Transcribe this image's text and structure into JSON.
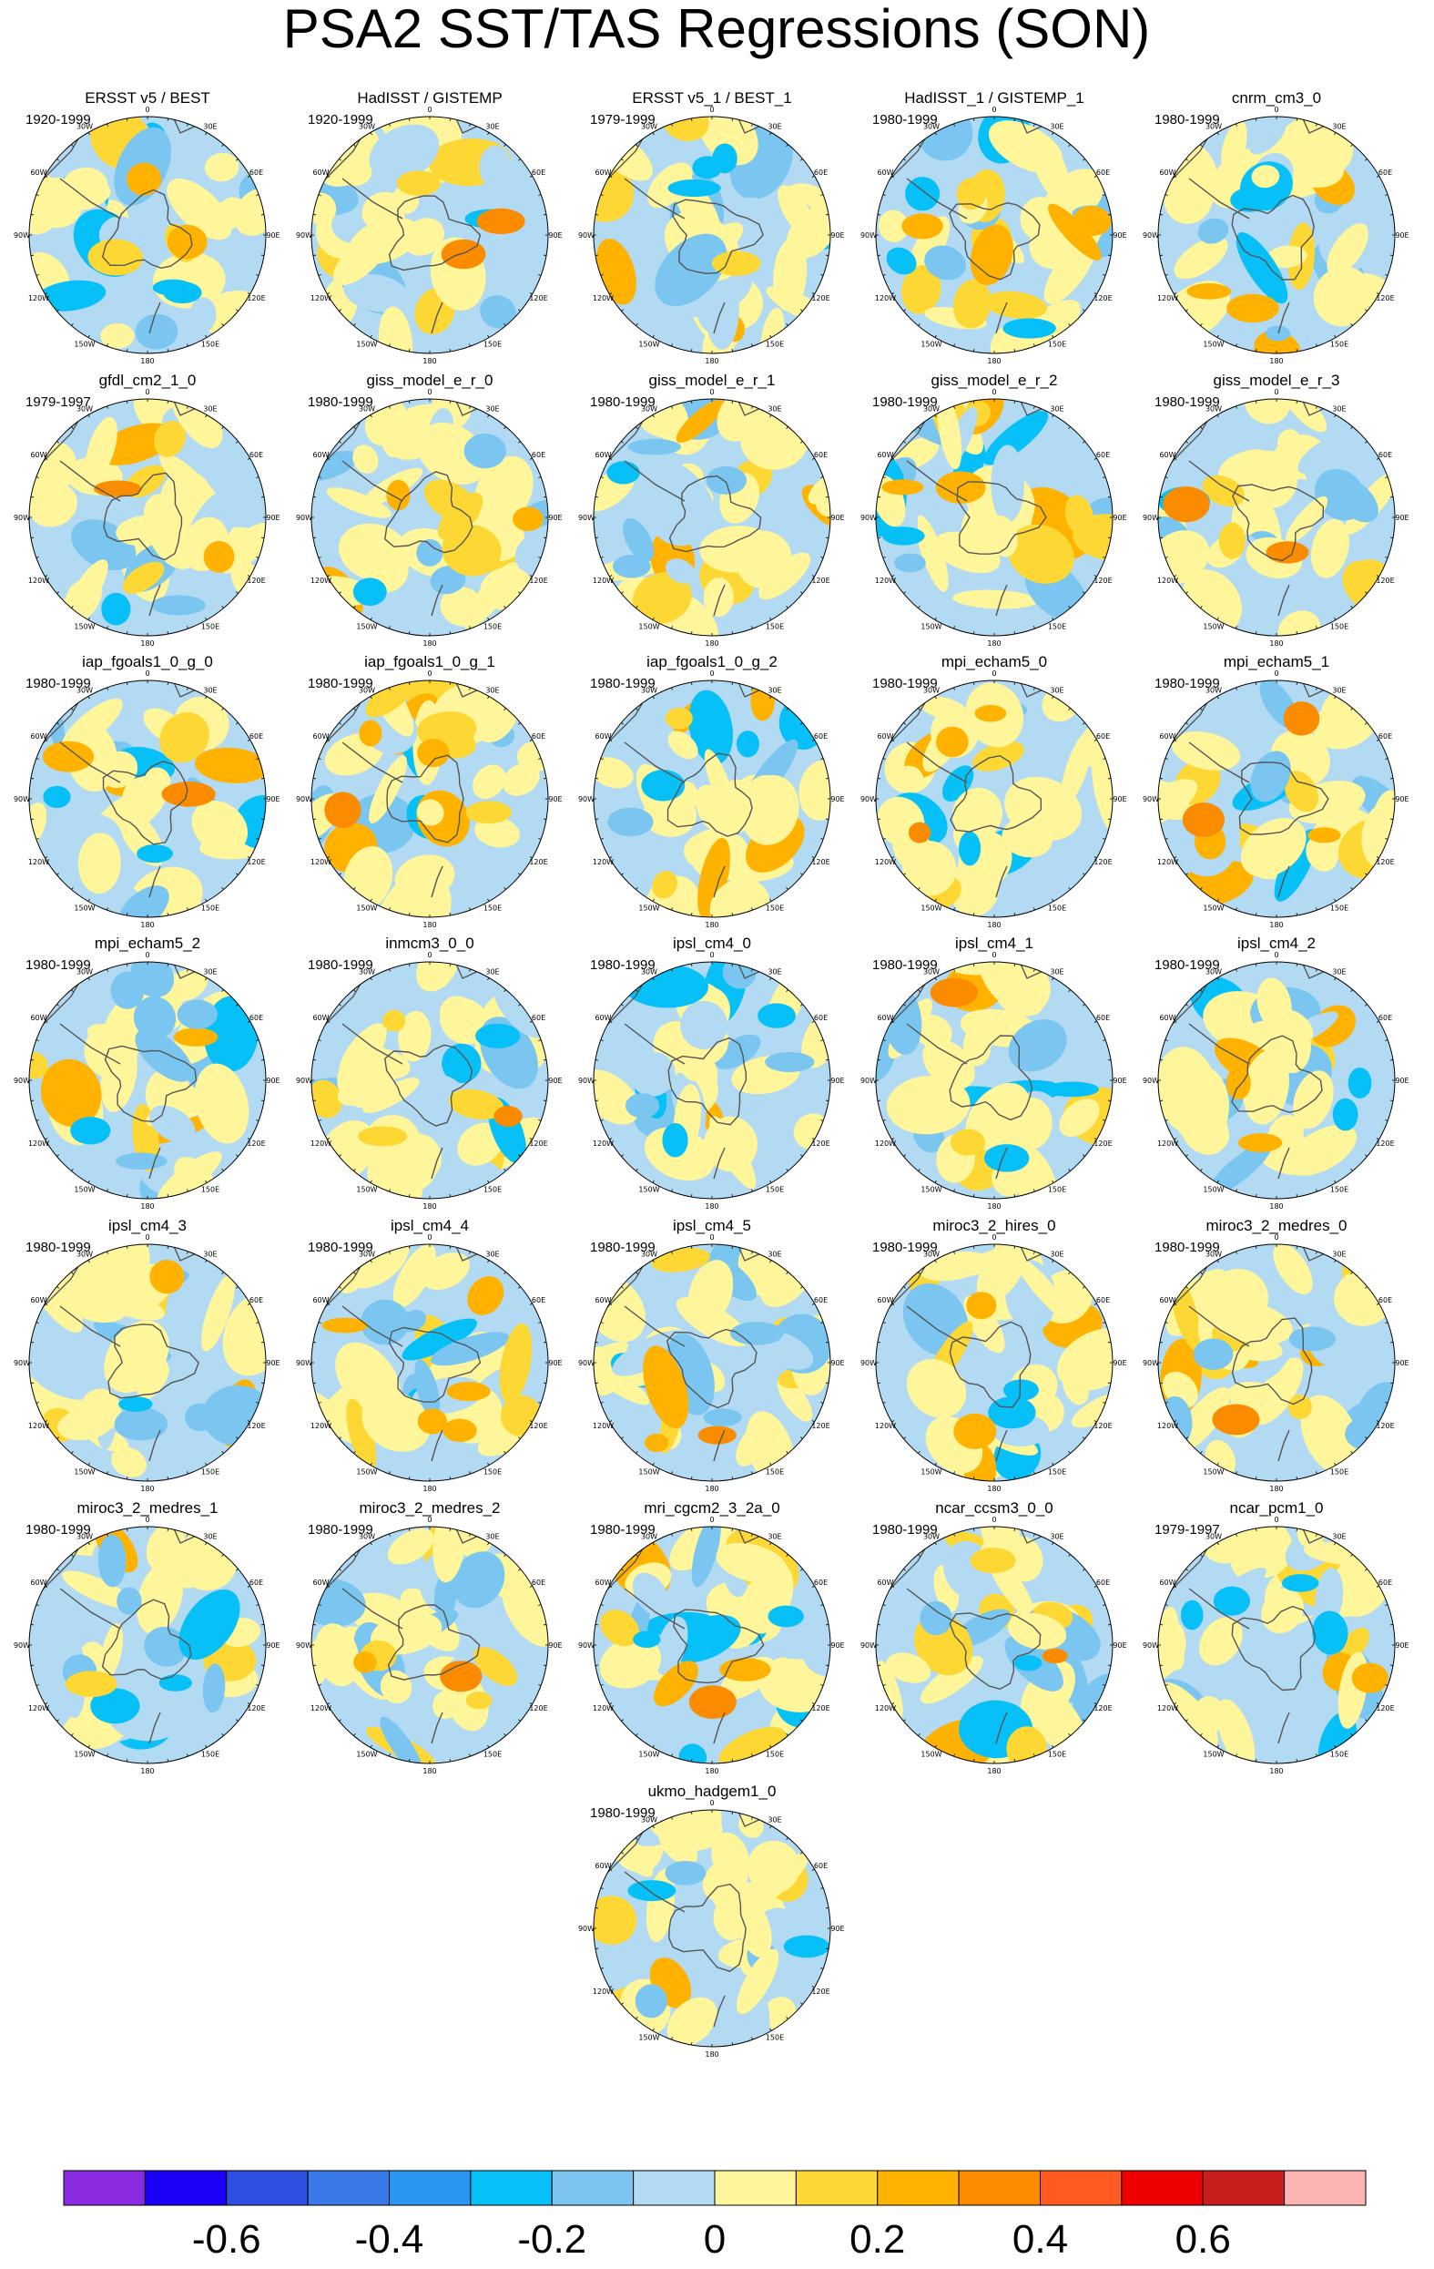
{
  "chart_data": {
    "type": "heatmap",
    "title": "PSA2 SST/TAS Regressions (SON)",
    "projection": "south-polar-stereographic",
    "longitude_labels": [
      "0",
      "30E",
      "60E",
      "90E",
      "120E",
      "150E",
      "180",
      "150W",
      "120W",
      "90W",
      "60W",
      "30W"
    ],
    "panels": [
      {
        "name": "ERSST v5 / BEST",
        "years": "1920-1999"
      },
      {
        "name": "HadISST / GISTEMP",
        "years": "1920-1999"
      },
      {
        "name": "ERSST v5_1 / BEST_1",
        "years": "1979-1999"
      },
      {
        "name": "HadISST_1 / GISTEMP_1",
        "years": "1980-1999"
      },
      {
        "name": "cnrm_cm3_0",
        "years": "1980-1999"
      },
      {
        "name": "gfdl_cm2_1_0",
        "years": "1979-1997"
      },
      {
        "name": "giss_model_e_r_0",
        "years": "1980-1999"
      },
      {
        "name": "giss_model_e_r_1",
        "years": "1980-1999"
      },
      {
        "name": "giss_model_e_r_2",
        "years": "1980-1999"
      },
      {
        "name": "giss_model_e_r_3",
        "years": "1980-1999"
      },
      {
        "name": "iap_fgoals1_0_g_0",
        "years": "1980-1999"
      },
      {
        "name": "iap_fgoals1_0_g_1",
        "years": "1980-1999"
      },
      {
        "name": "iap_fgoals1_0_g_2",
        "years": "1980-1999"
      },
      {
        "name": "mpi_echam5_0",
        "years": "1980-1999"
      },
      {
        "name": "mpi_echam5_1",
        "years": "1980-1999"
      },
      {
        "name": "mpi_echam5_2",
        "years": "1980-1999"
      },
      {
        "name": "inmcm3_0_0",
        "years": "1980-1999"
      },
      {
        "name": "ipsl_cm4_0",
        "years": "1980-1999"
      },
      {
        "name": "ipsl_cm4_1",
        "years": "1980-1999"
      },
      {
        "name": "ipsl_cm4_2",
        "years": "1980-1999"
      },
      {
        "name": "ipsl_cm4_3",
        "years": "1980-1999"
      },
      {
        "name": "ipsl_cm4_4",
        "years": "1980-1999"
      },
      {
        "name": "ipsl_cm4_5",
        "years": "1980-1999"
      },
      {
        "name": "miroc3_2_hires_0",
        "years": "1980-1999"
      },
      {
        "name": "miroc3_2_medres_0",
        "years": "1980-1999"
      },
      {
        "name": "miroc3_2_medres_1",
        "years": "1980-1999"
      },
      {
        "name": "miroc3_2_medres_2",
        "years": "1980-1999"
      },
      {
        "name": "mri_cgcm2_3_2a_0",
        "years": "1980-1999"
      },
      {
        "name": "ncar_ccsm3_0_0",
        "years": "1980-1999"
      },
      {
        "name": "ncar_pcm1_0",
        "years": "1979-1997"
      },
      {
        "name": "ukmo_hadgem1_0",
        "years": "1980-1999"
      }
    ],
    "colorbar": {
      "colors": [
        "#8a2be2",
        "#1a00f5",
        "#2f4fe0",
        "#3a7ae8",
        "#2a96f2",
        "#08c0f8",
        "#7ac6f0",
        "#b2daf2",
        "#fff59a",
        "#fdd835",
        "#ffb300",
        "#fb8c00",
        "#ff5a1f",
        "#ee0000",
        "#c81e1e",
        "#ffb4b4"
      ],
      "tick_values": [
        -0.6,
        -0.4,
        -0.2,
        0,
        0.2,
        0.4,
        0.6
      ],
      "tick_labels": [
        "-0.6",
        "-0.4",
        "-0.2",
        "0",
        "0.2",
        "0.4",
        "0.6"
      ],
      "range": [
        -0.8,
        0.8
      ]
    }
  }
}
